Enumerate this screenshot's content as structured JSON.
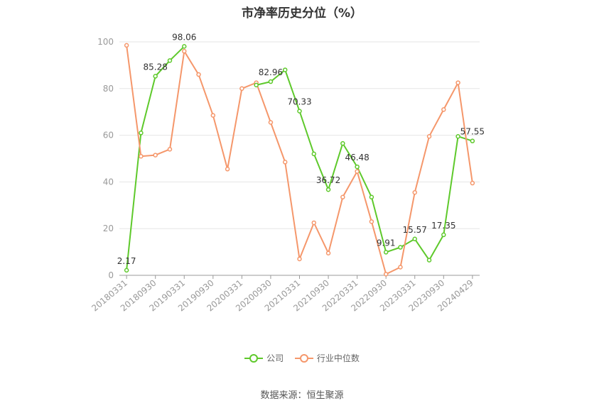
{
  "colors": {
    "company": "#5ec92b",
    "industry": "#f5976b",
    "grid": "#e6e6e6",
    "axis": "#999999"
  },
  "legend": {
    "company": "公司",
    "industry": "行业中位数"
  },
  "source": "数据来源：恒生聚源",
  "chart_data": {
    "type": "line",
    "title": "市净率历史分位（%）",
    "xlabel": "",
    "ylabel": "",
    "ylim": [
      0,
      100
    ],
    "yticks": [
      0,
      20,
      40,
      60,
      80,
      100
    ],
    "grid": true,
    "legend_position": "bottom",
    "x": [
      "20180331",
      "20180630",
      "20180930",
      "20181231",
      "20190331",
      "20190630",
      "20190930",
      "20191231",
      "20200331",
      "20200630",
      "20200930",
      "20201231",
      "20210331",
      "20210630",
      "20210930",
      "20211231",
      "20220331",
      "20220630",
      "20220930",
      "20221231",
      "20230331",
      "20230630",
      "20230930",
      "20231231",
      "20240429"
    ],
    "x_tick_labels": [
      "20180331",
      "20180930",
      "20190331",
      "20190930",
      "20200331",
      "20200930",
      "20210331",
      "20210930",
      "20220331",
      "20220930",
      "20230331",
      "20230930",
      "20240429"
    ],
    "series": [
      {
        "name": "公司",
        "values": [
          2.17,
          61,
          85.28,
          92,
          98.06,
          null,
          null,
          null,
          null,
          81.5,
          82.96,
          88,
          70.33,
          52,
          36.72,
          56.5,
          46.48,
          33.5,
          9.91,
          12,
          15.57,
          6.5,
          17.35,
          59.5,
          57.55
        ]
      },
      {
        "name": "行业中位数",
        "values": [
          98.5,
          51,
          51.5,
          54,
          96,
          86,
          68.5,
          45.5,
          80,
          82.5,
          65.5,
          48.5,
          7,
          22.5,
          9.5,
          33.5,
          44.5,
          23,
          0.5,
          3.5,
          35.5,
          59.5,
          71,
          82.5,
          39.5
        ]
      }
    ],
    "data_labels": [
      {
        "series": 0,
        "index": 0,
        "text": "2.17"
      },
      {
        "series": 0,
        "index": 2,
        "text": "85.28"
      },
      {
        "series": 0,
        "index": 4,
        "text": "98.06"
      },
      {
        "series": 0,
        "index": 10,
        "text": "82.96"
      },
      {
        "series": 0,
        "index": 12,
        "text": "70.33"
      },
      {
        "series": 0,
        "index": 14,
        "text": "36.72"
      },
      {
        "series": 0,
        "index": 16,
        "text": "46.48"
      },
      {
        "series": 0,
        "index": 18,
        "text": "9.91"
      },
      {
        "series": 0,
        "index": 20,
        "text": "15.57"
      },
      {
        "series": 0,
        "index": 22,
        "text": "17.35"
      },
      {
        "series": 0,
        "index": 24,
        "text": "57.55"
      }
    ]
  }
}
